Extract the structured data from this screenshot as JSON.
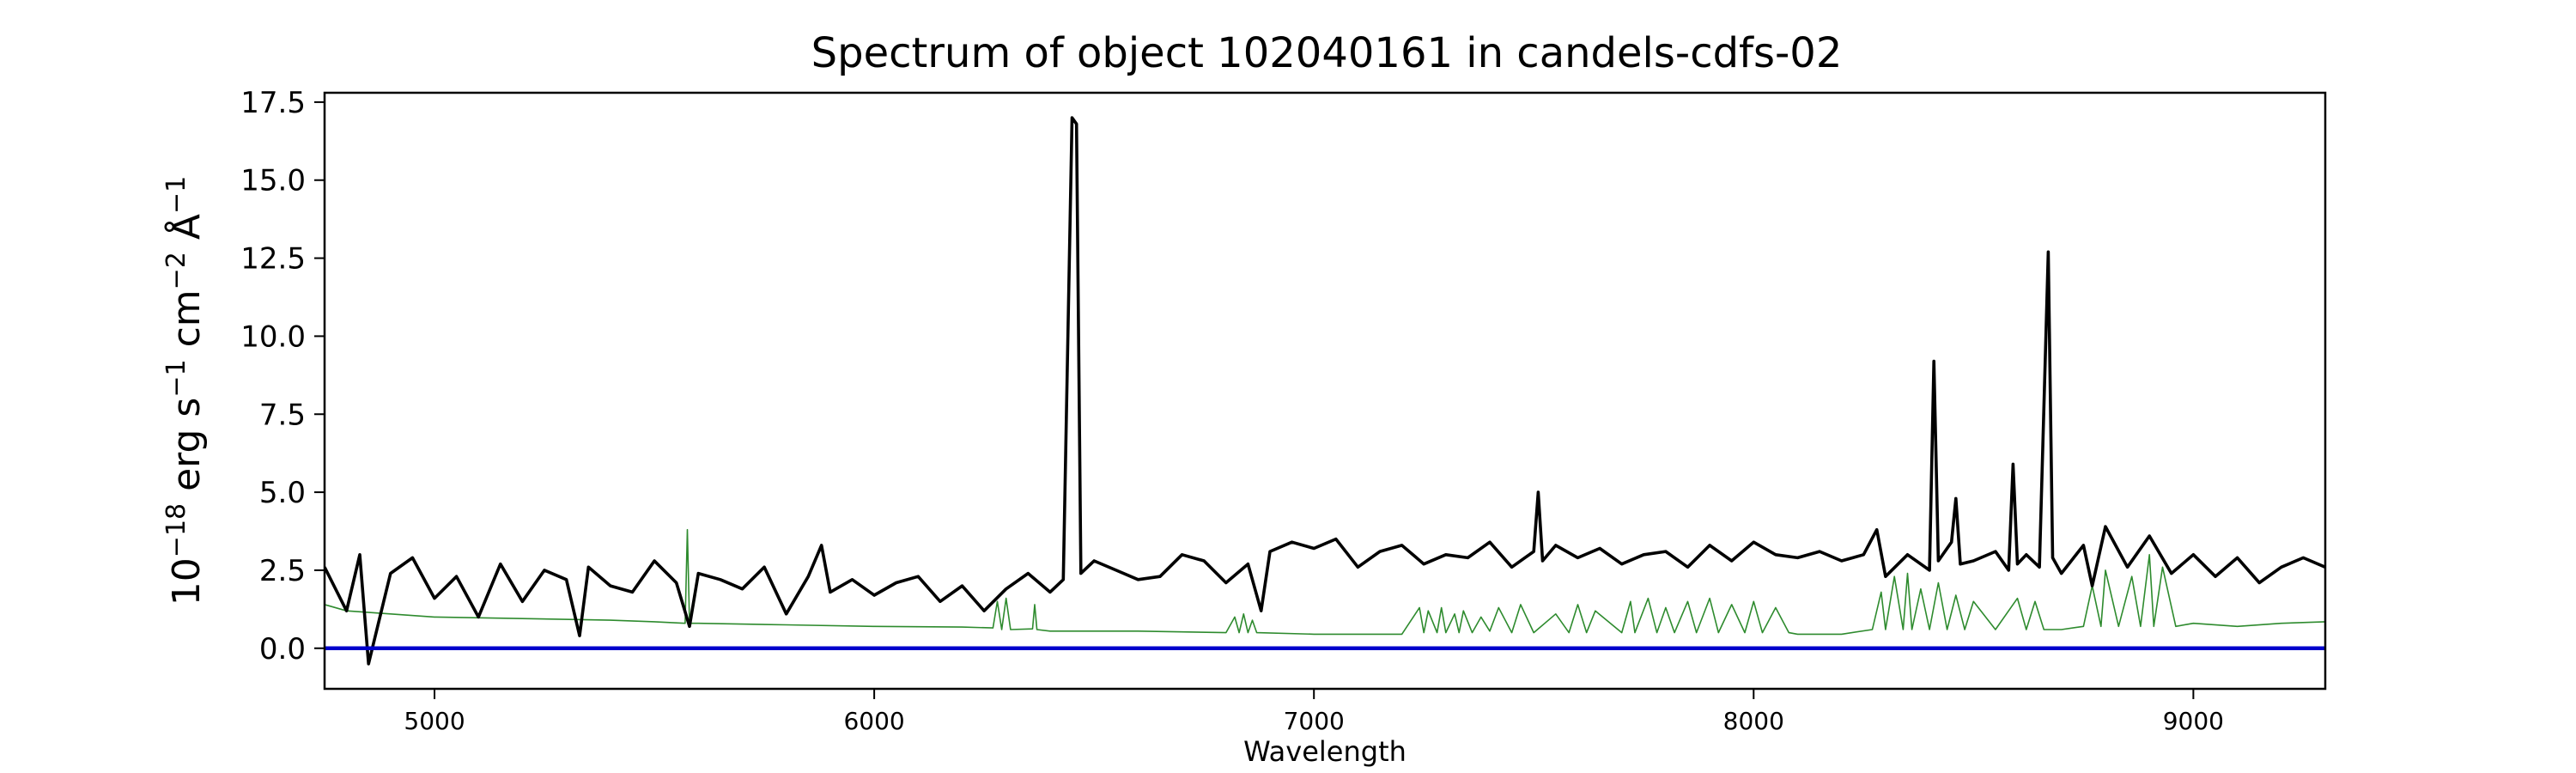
{
  "chart_data": {
    "type": "line",
    "title": "Spectrum of object 102040161 in candels-cdfs-02",
    "xlabel": "Wavelength",
    "ylabel_parts": [
      "10",
      "−18",
      " erg s",
      "−1",
      " cm",
      "−2",
      " Å",
      "−1"
    ],
    "xlim": [
      4750,
      9300
    ],
    "ylim": [
      -1.3,
      17.8
    ],
    "xticks": [
      5000,
      6000,
      7000,
      8000,
      9000
    ],
    "xtick_labels": [
      "5000",
      "6000",
      "7000",
      "8000",
      "9000"
    ],
    "yticks": [
      0.0,
      2.5,
      5.0,
      7.5,
      10.0,
      12.5,
      15.0,
      17.5
    ],
    "ytick_labels": [
      "0.0",
      "2.5",
      "5.0",
      "7.5",
      "10.0",
      "12.5",
      "15.0",
      "17.5"
    ],
    "grid": false,
    "colors": {
      "flux": "#000000",
      "noise": "#2e8b2e",
      "zero": "#0000cc"
    },
    "series": [
      {
        "key": "flux",
        "x": [
          4750,
          4800,
          4830,
          4850,
          4900,
          4950,
          5000,
          5050,
          5100,
          5150,
          5200,
          5250,
          5300,
          5330,
          5350,
          5400,
          5450,
          5500,
          5550,
          5580,
          5600,
          5650,
          5700,
          5750,
          5800,
          5850,
          5880,
          5900,
          5950,
          6000,
          6050,
          6100,
          6150,
          6200,
          6250,
          6300,
          6350,
          6400,
          6430,
          6450,
          6460,
          6470,
          6500,
          6550,
          6600,
          6650,
          6700,
          6750,
          6800,
          6850,
          6880,
          6900,
          6950,
          7000,
          7050,
          7100,
          7150,
          7200,
          7250,
          7300,
          7350,
          7400,
          7450,
          7500,
          7510,
          7520,
          7550,
          7600,
          7650,
          7700,
          7750,
          7800,
          7850,
          7900,
          7950,
          8000,
          8050,
          8100,
          8150,
          8200,
          8250,
          8280,
          8300,
          8350,
          8400,
          8410,
          8420,
          8450,
          8460,
          8470,
          8500,
          8550,
          8580,
          8590,
          8600,
          8620,
          8650,
          8670,
          8680,
          8700,
          8750,
          8770,
          8800,
          8850,
          8900,
          8950,
          9000,
          9050,
          9100,
          9150,
          9200,
          9250,
          9300
        ],
        "values": [
          2.6,
          1.2,
          3.0,
          -0.5,
          2.4,
          2.9,
          1.6,
          2.3,
          1.0,
          2.7,
          1.5,
          2.5,
          2.2,
          0.4,
          2.6,
          2.0,
          1.8,
          2.8,
          2.1,
          0.7,
          2.4,
          2.2,
          1.9,
          2.6,
          1.1,
          2.3,
          3.3,
          1.8,
          2.2,
          1.7,
          2.1,
          2.3,
          1.5,
          2.0,
          1.2,
          1.9,
          2.4,
          1.8,
          2.2,
          17.0,
          16.8,
          2.4,
          2.8,
          2.5,
          2.2,
          2.3,
          3.0,
          2.8,
          2.1,
          2.7,
          1.2,
          3.1,
          3.4,
          3.2,
          3.5,
          2.6,
          3.1,
          3.3,
          2.7,
          3.0,
          2.9,
          3.4,
          2.6,
          3.1,
          5.0,
          2.8,
          3.3,
          2.9,
          3.2,
          2.7,
          3.0,
          3.1,
          2.6,
          3.3,
          2.8,
          3.4,
          3.0,
          2.9,
          3.1,
          2.8,
          3.0,
          3.8,
          2.3,
          3.0,
          2.5,
          9.2,
          2.8,
          3.4,
          4.8,
          2.7,
          2.8,
          3.1,
          2.5,
          5.9,
          2.7,
          3.0,
          2.6,
          12.7,
          2.9,
          2.4,
          3.3,
          2.0,
          3.9,
          2.6,
          3.6,
          2.4,
          3.0,
          2.3,
          2.9,
          2.1,
          2.6,
          2.9,
          2.6
        ]
      },
      {
        "key": "noise",
        "x": [
          4750,
          4800,
          4900,
          5000,
          5200,
          5400,
          5500,
          5570,
          5575,
          5580,
          5600,
          5800,
          6000,
          6200,
          6270,
          6280,
          6290,
          6300,
          6310,
          6360,
          6365,
          6370,
          6400,
          6600,
          6800,
          6820,
          6830,
          6840,
          6850,
          6860,
          6870,
          7000,
          7200,
          7240,
          7250,
          7260,
          7280,
          7290,
          7300,
          7320,
          7330,
          7340,
          7360,
          7380,
          7400,
          7420,
          7450,
          7470,
          7500,
          7550,
          7580,
          7600,
          7620,
          7640,
          7700,
          7720,
          7730,
          7760,
          7780,
          7800,
          7820,
          7850,
          7870,
          7900,
          7920,
          7950,
          7980,
          8000,
          8020,
          8050,
          8080,
          8100,
          8200,
          8270,
          8290,
          8300,
          8320,
          8340,
          8350,
          8360,
          8380,
          8400,
          8420,
          8440,
          8460,
          8480,
          8500,
          8550,
          8600,
          8620,
          8640,
          8660,
          8700,
          8750,
          8770,
          8790,
          8800,
          8830,
          8860,
          8880,
          8900,
          8910,
          8930,
          8960,
          9000,
          9100,
          9200,
          9300
        ],
        "values": [
          1.4,
          1.2,
          1.1,
          1.0,
          0.95,
          0.9,
          0.85,
          0.8,
          3.8,
          0.8,
          0.8,
          0.75,
          0.7,
          0.68,
          0.65,
          1.5,
          0.6,
          1.6,
          0.6,
          0.62,
          1.4,
          0.6,
          0.55,
          0.55,
          0.5,
          1.0,
          0.5,
          1.1,
          0.5,
          0.9,
          0.5,
          0.45,
          0.45,
          1.3,
          0.5,
          1.2,
          0.5,
          1.3,
          0.5,
          1.1,
          0.5,
          1.2,
          0.5,
          1.0,
          0.55,
          1.3,
          0.5,
          1.4,
          0.5,
          1.1,
          0.5,
          1.4,
          0.5,
          1.2,
          0.5,
          1.5,
          0.5,
          1.6,
          0.5,
          1.3,
          0.5,
          1.5,
          0.5,
          1.6,
          0.5,
          1.4,
          0.5,
          1.5,
          0.5,
          1.3,
          0.5,
          0.45,
          0.45,
          0.6,
          1.8,
          0.6,
          2.3,
          0.6,
          2.4,
          0.6,
          1.9,
          0.6,
          2.1,
          0.6,
          1.7,
          0.6,
          1.5,
          0.6,
          1.6,
          0.6,
          1.5,
          0.6,
          0.6,
          0.7,
          2.0,
          0.7,
          2.5,
          0.7,
          2.3,
          0.7,
          3.0,
          0.7,
          2.6,
          0.7,
          0.8,
          0.7,
          0.8,
          0.85
        ]
      },
      {
        "key": "zero",
        "x": [
          4750,
          9300
        ],
        "values": [
          0,
          0
        ]
      }
    ]
  }
}
